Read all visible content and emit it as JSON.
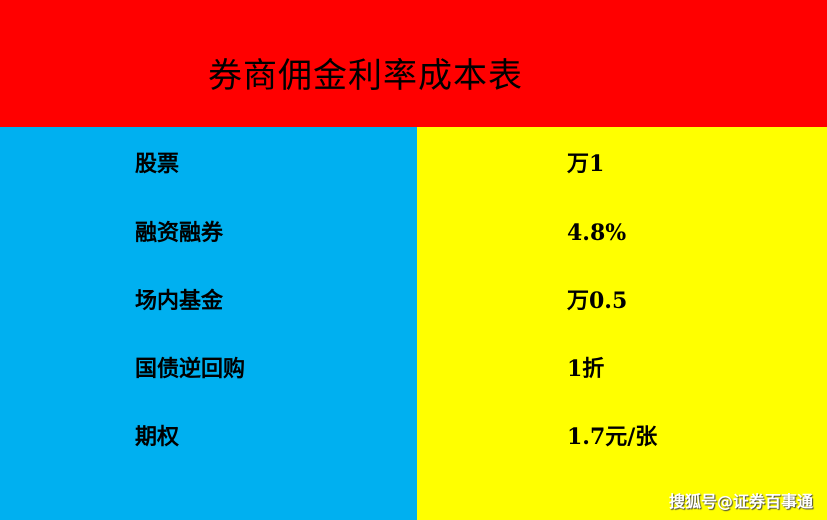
{
  "title": "券商佣金利率成本表",
  "rows": [
    {
      "label": "股票",
      "value": "万1"
    },
    {
      "label": "融资融券",
      "value": "4.8%"
    },
    {
      "label": "场内基金",
      "value": "万0.5"
    },
    {
      "label": "国债逆回购",
      "value": "1折"
    },
    {
      "label": "期权",
      "value": "1.7元/张"
    }
  ],
  "watermark": "搜狐号@证券百事通",
  "colors": {
    "header": "#FF0000",
    "left": "#00B0F0",
    "right": "#FFFF00"
  }
}
